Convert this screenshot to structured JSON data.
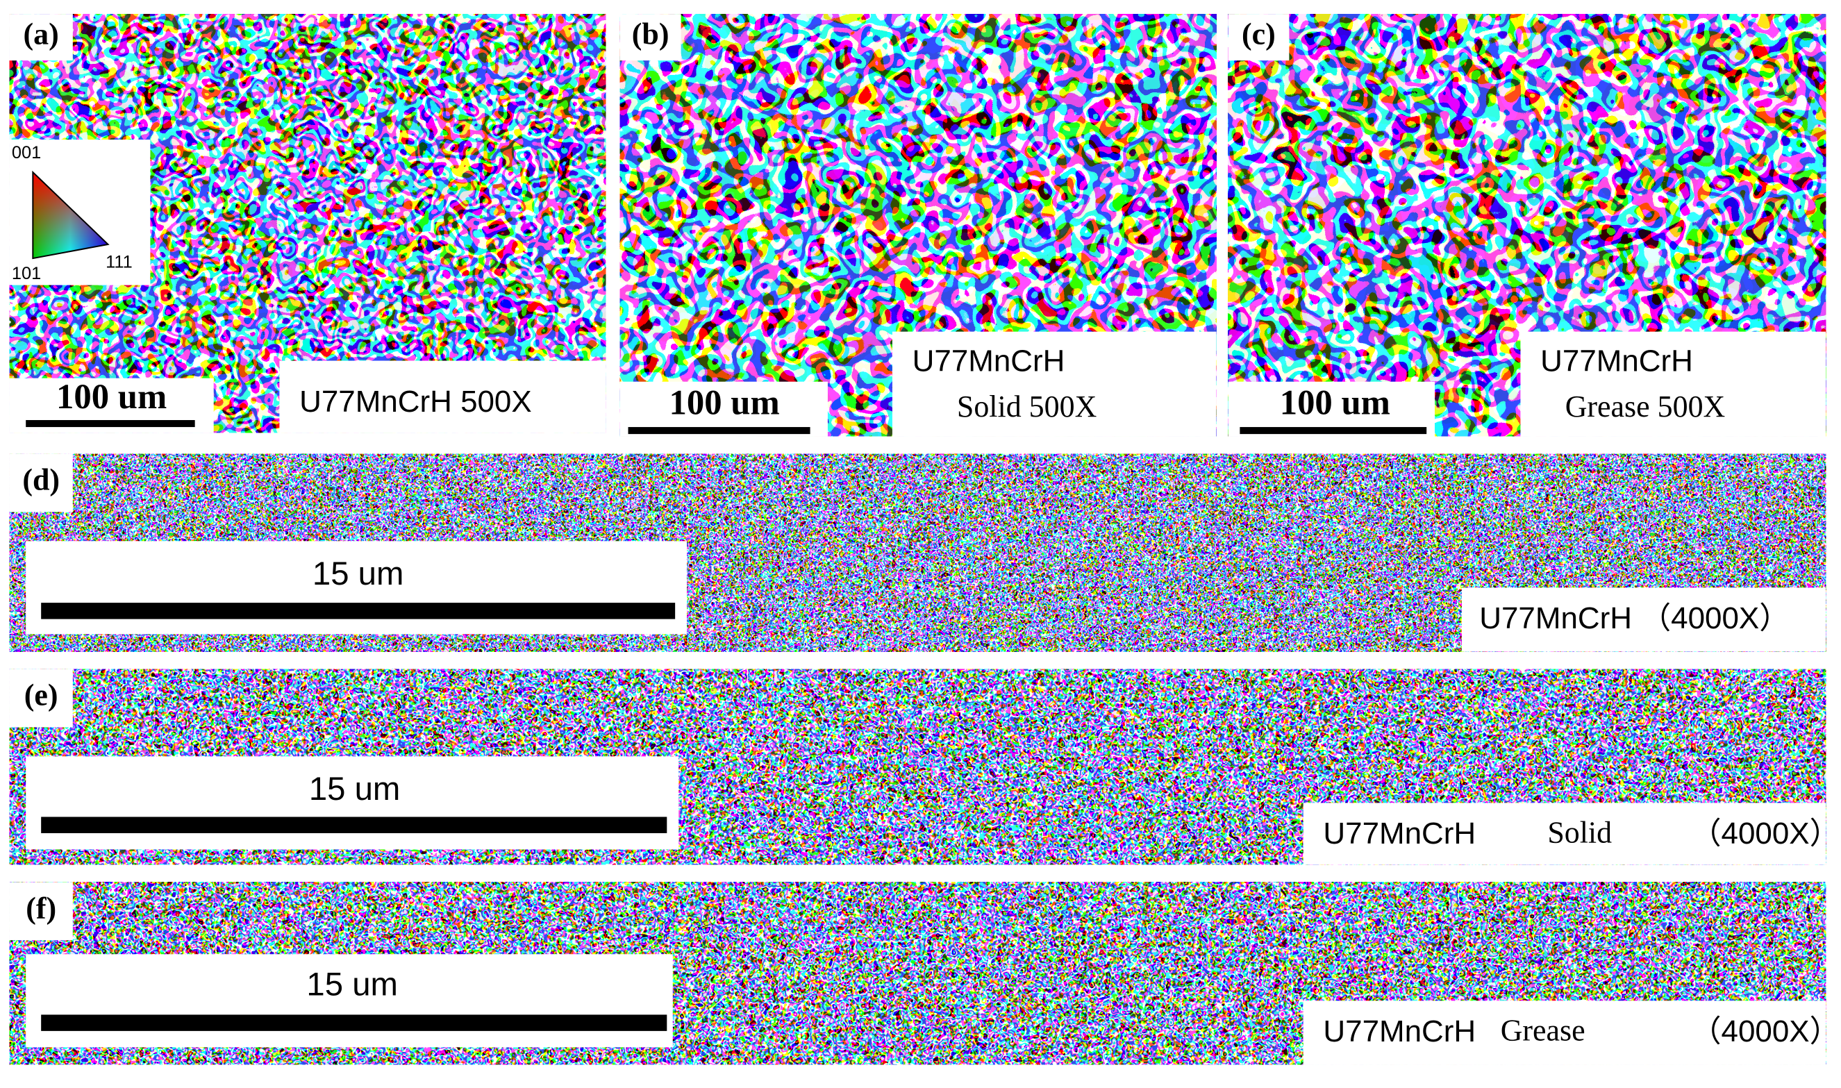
{
  "legend": {
    "labels": [
      "001",
      "101",
      "111"
    ]
  },
  "panels": [
    {
      "label": "(a)",
      "scale_bar": "100 um",
      "caption": [
        "U77MnCrH 500X"
      ]
    },
    {
      "label": "(b)",
      "scale_bar": "100 um",
      "caption": [
        "U77MnCrH",
        "Solid  500X"
      ]
    },
    {
      "label": "(c)",
      "scale_bar": "100 um",
      "caption": [
        "U77MnCrH",
        "Grease  500X"
      ]
    },
    {
      "label": "(d)",
      "scale_bar": "15 um",
      "caption": [
        "U77MnCrH （4000X）"
      ]
    },
    {
      "label": "(e)",
      "scale_bar": "15 um",
      "caption": [
        "U77MnCrH",
        "Solid",
        "（4000X）"
      ]
    },
    {
      "label": "(f)",
      "scale_bar": "15 um",
      "caption": [
        "U77MnCrH",
        "Grease",
        "（4000X）"
      ]
    }
  ]
}
